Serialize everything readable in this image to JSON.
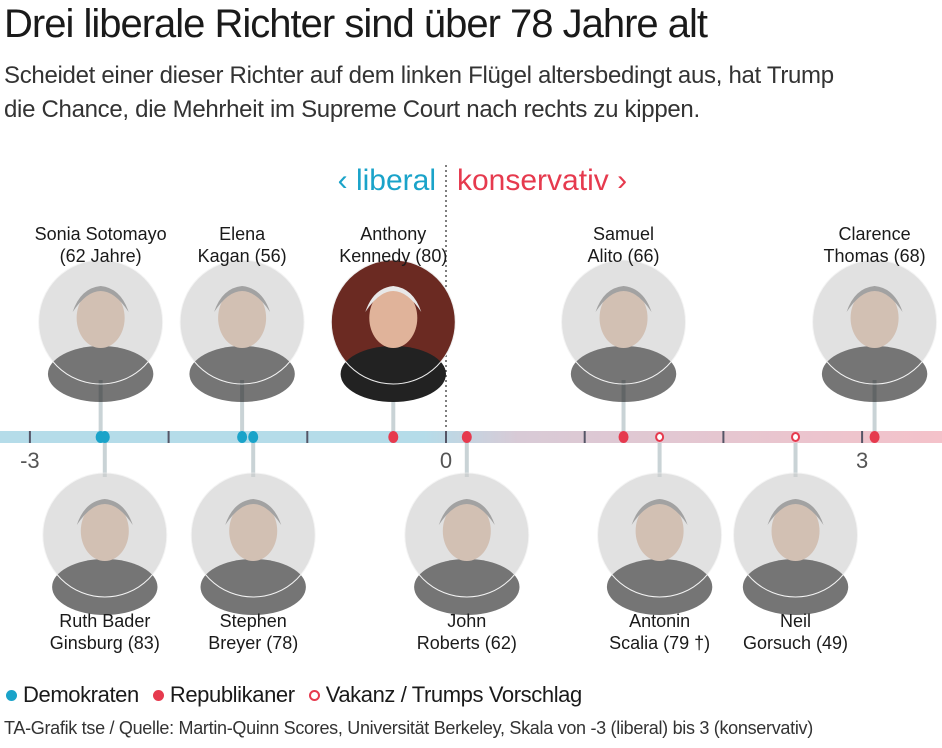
{
  "title": "Drei liberale Richter sind über 78 Jahre alt",
  "subtitle_lines": [
    "Scheidet einer dieser Richter auf dem linken Flügel altersbedingt aus, hat Trump",
    "die Chance, die Mehrheit im Supreme Court nach rechts zu kippen."
  ],
  "legend": [
    {
      "label": "Demokraten",
      "marker": "filled",
      "color": "#1aa3c9"
    },
    {
      "label": "Republikaner",
      "marker": "filled",
      "color": "#e63a4e"
    },
    {
      "label": "Vakanz / Trumps Vorschlag",
      "marker": "open",
      "color": "#e63a4e"
    }
  ],
  "source": "TA-Grafik tse / Quelle: Martin-Quinn Scores, Universität Berkeley, Skala von -3 (liberal) bis 3 (konservativ)",
  "chart_data": {
    "type": "scatter",
    "title": "",
    "xlim": [
      -3.2,
      3.6
    ],
    "ticks": [
      -3,
      -2,
      -1,
      0,
      1,
      2,
      3
    ],
    "tick_labels": [
      "-3",
      "0",
      "3"
    ],
    "labeled_ticks": [
      -3,
      0,
      3
    ],
    "side_labels": {
      "left": "‹ liberal",
      "right": "konservativ ›",
      "left_color": "#1aa3c9",
      "right_color": "#e63a4e"
    },
    "axis_colors": {
      "liberal": "#b5dce9",
      "conservative": "#f4c2ca"
    },
    "points": [
      {
        "name": "Sonia Sotomayor",
        "label_lines": [
          "Sonia Sotomayo",
          "(62 Jahre)"
        ],
        "age": 62,
        "value": -2.49,
        "party": "Demokraten",
        "marker": "filled",
        "side": "top",
        "photo_faded": true
      },
      {
        "name": "Ruth Bader Ginsburg",
        "label_lines": [
          "Ruth Bader",
          "Ginsburg (83)"
        ],
        "age": 83,
        "value": -2.46,
        "party": "Demokraten",
        "marker": "filled",
        "side": "bottom",
        "photo_faded": true
      },
      {
        "name": "Elena Kagan",
        "label_lines": [
          "Elena",
          "Kagan (56)"
        ],
        "age": 56,
        "value": -1.47,
        "party": "Demokraten",
        "marker": "filled",
        "side": "top",
        "photo_faded": true
      },
      {
        "name": "Stephen Breyer",
        "label_lines": [
          "Stephen",
          "Breyer (78)"
        ],
        "age": 78,
        "value": -1.39,
        "party": "Demokraten",
        "marker": "filled",
        "side": "bottom",
        "photo_faded": true
      },
      {
        "name": "Anthony Kennedy",
        "label_lines": [
          "Anthony",
          "Kennedy (80)"
        ],
        "age": 80,
        "value": -0.38,
        "party": "Republikaner",
        "marker": "filled",
        "side": "top",
        "photo_faded": false
      },
      {
        "name": "John Roberts",
        "label_lines": [
          "John",
          "Roberts (62)"
        ],
        "age": 62,
        "value": 0.15,
        "party": "Republikaner",
        "marker": "filled",
        "side": "bottom",
        "photo_faded": true
      },
      {
        "name": "Samuel Alito",
        "label_lines": [
          "Samuel",
          "Alito (66)"
        ],
        "age": 66,
        "value": 1.28,
        "party": "Republikaner",
        "marker": "filled",
        "side": "top",
        "photo_faded": true
      },
      {
        "name": "Antonin Scalia",
        "label_lines": [
          "Antonin",
          "Scalia (79 †)"
        ],
        "age": 79,
        "value": 1.54,
        "party": "Vakanz",
        "marker": "open",
        "side": "bottom",
        "photo_faded": true
      },
      {
        "name": "Neil Gorsuch",
        "label_lines": [
          "Neil",
          "Gorsuch (49)"
        ],
        "age": 49,
        "value": 2.52,
        "party": "Trumps Vorschlag",
        "marker": "open",
        "side": "bottom",
        "photo_faded": true
      },
      {
        "name": "Clarence Thomas",
        "label_lines": [
          "Clarence",
          "Thomas (68)"
        ],
        "age": 68,
        "value": 3.09,
        "party": "Republikaner",
        "marker": "filled",
        "side": "top",
        "photo_faded": true
      }
    ]
  }
}
